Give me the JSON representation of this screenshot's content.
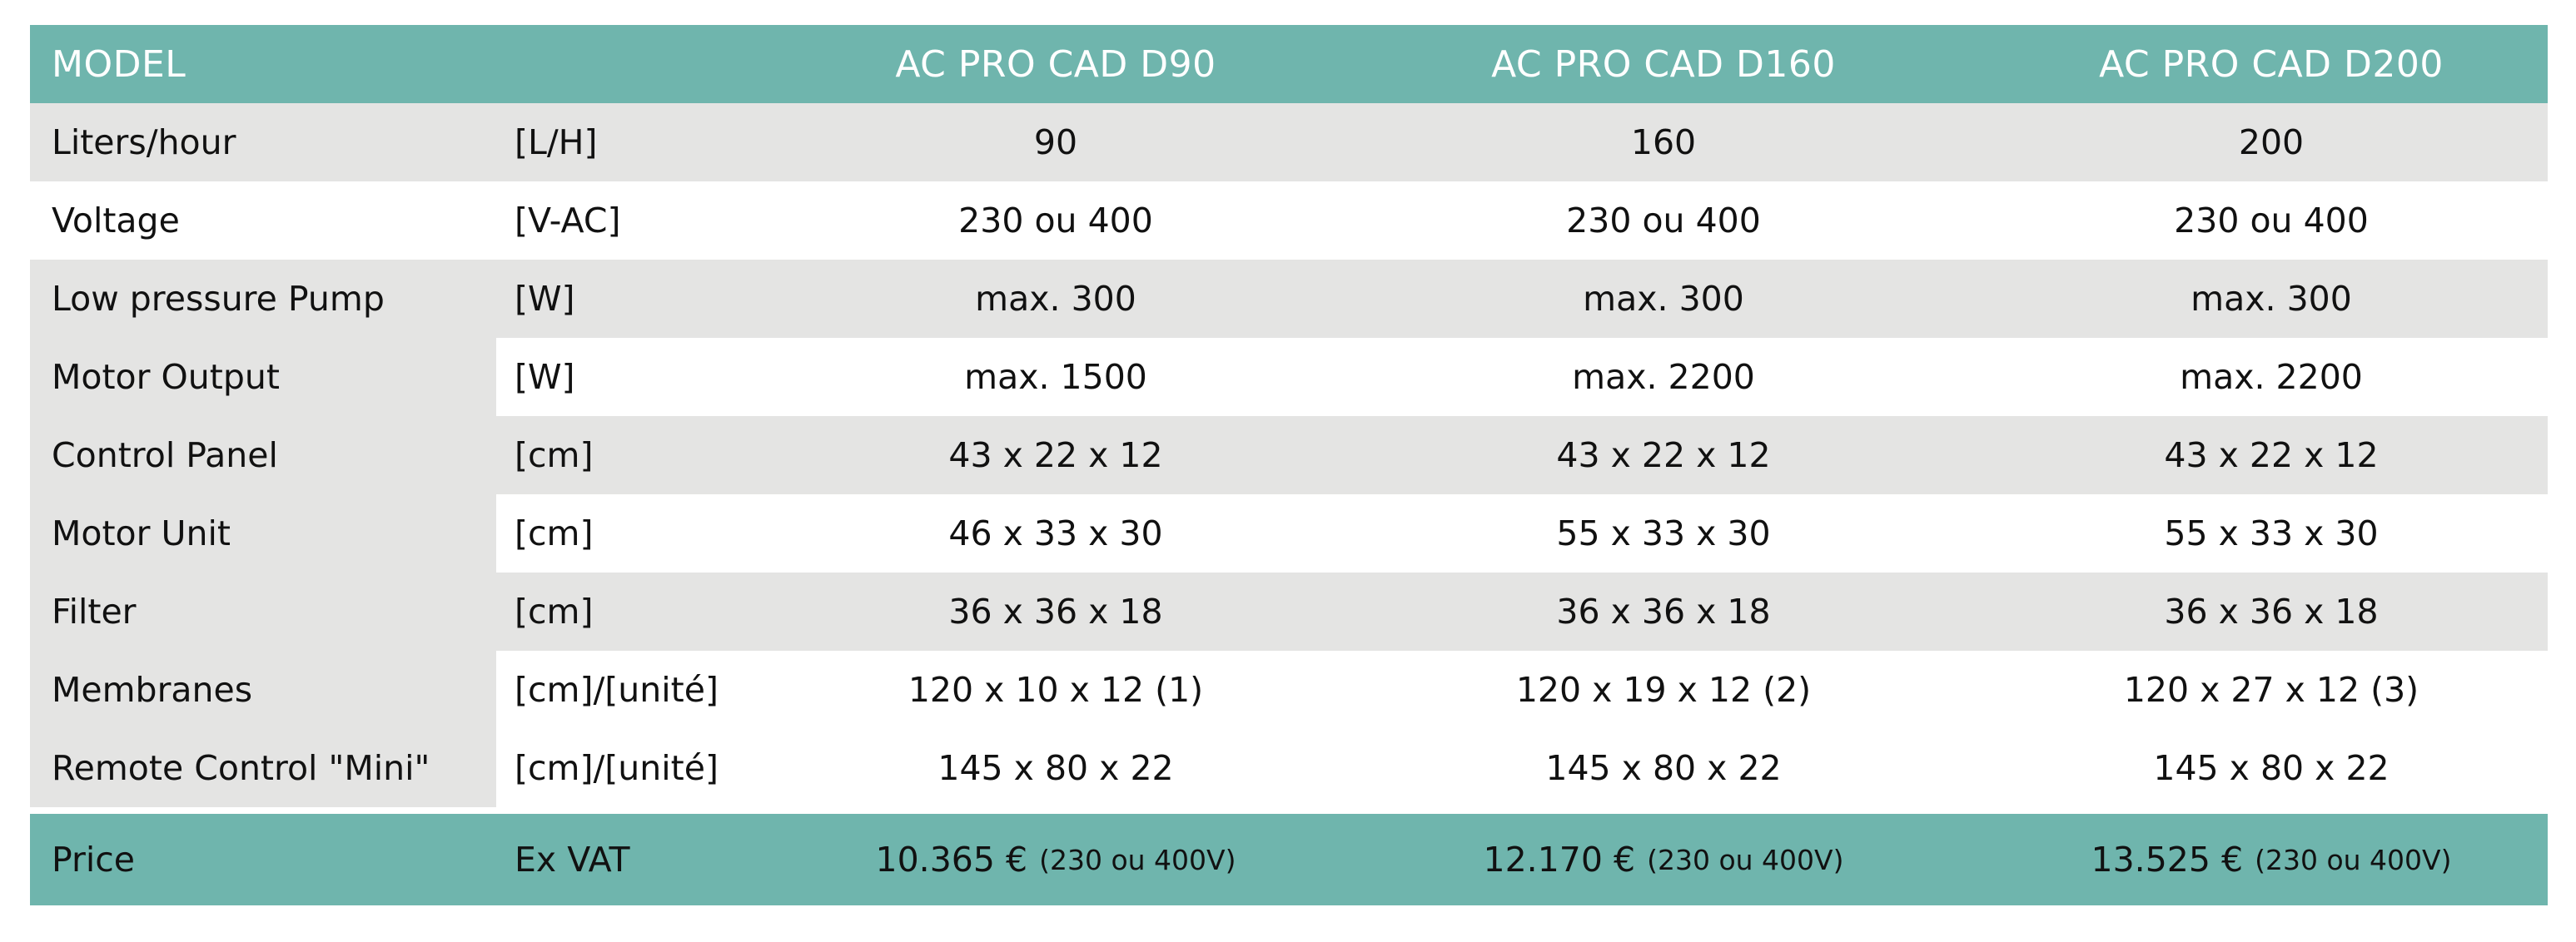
{
  "header": {
    "model_label": "MODEL",
    "models": [
      "AC PRO CAD D90",
      "AC PRO CAD D160",
      "AC PRO CAD D200"
    ]
  },
  "rows": [
    {
      "label": "Liters/hour",
      "unit": "[L/H]",
      "values": [
        "90",
        "160",
        "200"
      ]
    },
    {
      "label": "Voltage",
      "unit": "[V-AC]",
      "values": [
        "230 ou 400",
        "230 ou 400",
        "230 ou 400"
      ]
    },
    {
      "label": "Low pressure Pump",
      "unit": "[W]",
      "values": [
        "max. 300",
        "max. 300",
        "max. 300"
      ]
    },
    {
      "label": "Motor Output",
      "unit": "[W]",
      "values": [
        "max. 1500",
        "max. 2200",
        "max. 2200"
      ]
    },
    {
      "label": "Control Panel",
      "unit": "[cm]",
      "values": [
        "43 x 22 x 12",
        "43 x 22 x 12",
        "43 x 22 x 12"
      ]
    },
    {
      "label": "Motor Unit",
      "unit": "[cm]",
      "values": [
        "46 x 33 x 30",
        "55 x 33 x 30",
        "55 x 33 x 30"
      ]
    },
    {
      "label": "Filter",
      "unit": "[cm]",
      "values": [
        "36 x 36 x 18",
        "36 x 36 x 18",
        "36 x 36 x 18"
      ]
    },
    {
      "label": "Membranes",
      "unit": "[cm]/[unité]",
      "values": [
        "120 x 10 x 12 (1)",
        "120 x 19 x 12 (2)",
        "120 x 27 x 12 (3)"
      ]
    },
    {
      "label": "Remote Control \"Mini\"",
      "unit": "[cm]/[unité]",
      "values": [
        "145 x 80 x 22",
        "145 x 80 x 22",
        "145 x 80 x 22"
      ]
    }
  ],
  "price": {
    "label": "Price",
    "unit": "Ex VAT",
    "values": [
      {
        "amount": "10.365 €",
        "note": "(230 ou 400V)"
      },
      {
        "amount": "12.170 €",
        "note": "(230 ou 400V)"
      },
      {
        "amount": "13.525 €",
        "note": "(230 ou 400V)"
      }
    ]
  },
  "colors": {
    "header_bg": "#6fb5ad",
    "stripe_bg": "#e4e4e3",
    "text": "#111111",
    "header_text": "#ffffff"
  }
}
